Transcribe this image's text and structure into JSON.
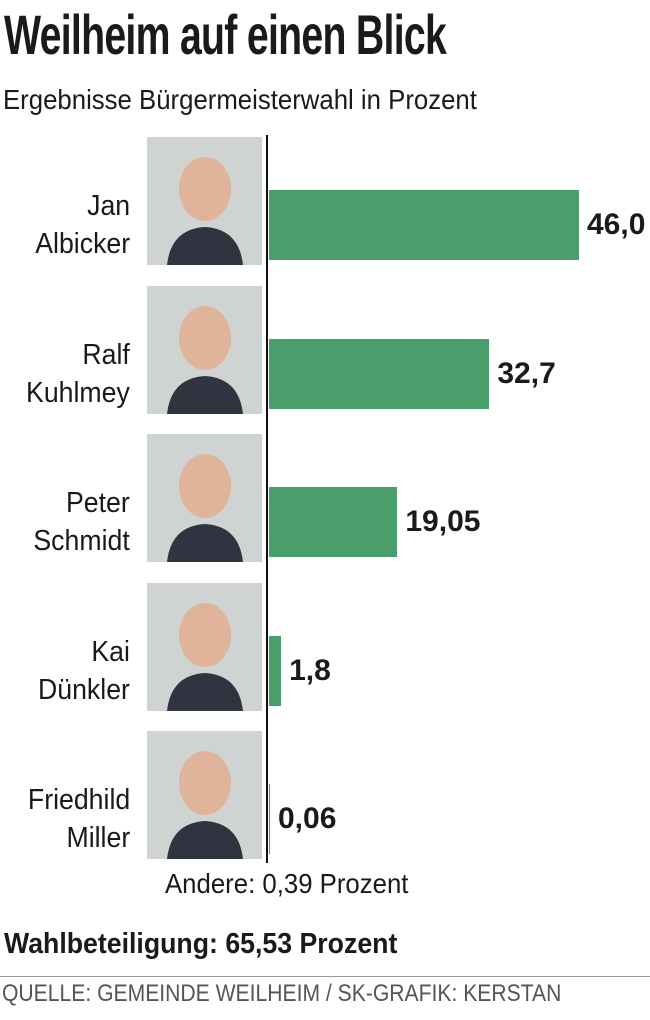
{
  "chart_data": {
    "type": "bar",
    "orientation": "horizontal",
    "title": "Weilheim auf einen Blick",
    "subtitle": "Ergebnisse Bürgermeisterwahl in Prozent",
    "categories": [
      "Jan Albicker",
      "Ralf Kuhlmey",
      "Peter Schmidt",
      "Kai Dünkler",
      "Friedhild Miller"
    ],
    "values": [
      46.0,
      32.7,
      19.05,
      1.8,
      0.06
    ],
    "value_labels": [
      "46,0",
      "32,7",
      "19,05",
      "1,8",
      "0,06"
    ],
    "color": "#4a9e6b",
    "note": "Andere: 0,39 Prozent",
    "turnout": "Wahlbeteiligung: 65,53 Prozent",
    "source": "QUELLE: GEMEINDE WEILHEIM / SK-GRAFIK: KERSTAN"
  }
}
